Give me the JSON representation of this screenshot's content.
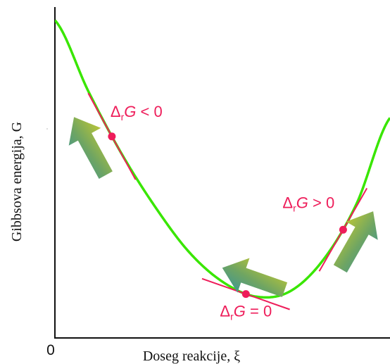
{
  "chart_data": {
    "type": "line",
    "title": "",
    "xlabel": "Doseg reakcije, ξ",
    "ylabel": "Gibbsova energija, G",
    "origin_label": "0",
    "grid": false,
    "legend": "none",
    "series": [
      {
        "values_description": "",
        "x": [
          0.0,
          0.1,
          0.2,
          0.3,
          0.4,
          0.5,
          0.6,
          0.7,
          0.8,
          0.9,
          1.0
        ],
        "values": [
          9.6,
          7.45,
          5.55,
          3.95,
          2.6,
          1.7,
          1.25,
          1.4,
          2.35,
          4.05,
          6.65
        ]
      }
    ],
    "annotations": [
      {
        "label_main": "Δ",
        "label_sub": "r",
        "label_var": "G",
        "label_rel": " < 0",
        "x": 0.17,
        "color": "#ee1d5a"
      },
      {
        "label_main": "Δ",
        "label_sub": "r",
        "label_var": "G",
        "label_rel": " = 0",
        "x": 0.57,
        "color": "#ee1d5a"
      },
      {
        "label_main": "Δ",
        "label_sub": "r",
        "label_var": "G",
        "label_rel": " > 0",
        "x": 0.86,
        "color": "#ee1d5a"
      }
    ],
    "colors": {
      "curve": "#39e600",
      "tangent": "#ee1d5a",
      "point": "#ee1d5a",
      "arrow_start": "#e6d81e",
      "arrow_end": "#2a8fa8",
      "axis": "#111111"
    }
  }
}
